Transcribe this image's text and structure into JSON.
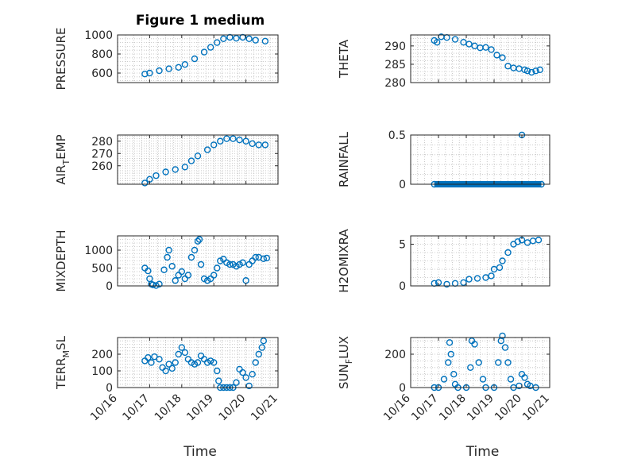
{
  "title": "Figure 1 medium",
  "x_axis": {
    "label": "Time",
    "tick_labels": [
      "10/16",
      "10/17",
      "10/18",
      "10/19",
      "10/20",
      "10/21"
    ],
    "tick_values": [
      16,
      17,
      18,
      19,
      20,
      21
    ],
    "range": [
      16,
      21
    ]
  },
  "marker_color": "#0072BD",
  "chart_data": [
    {
      "type": "scatter",
      "name": "PRESSURE",
      "ylabel": "PRESSURE",
      "ylim": [
        500,
        1000
      ],
      "yticks": [
        600,
        800,
        1000
      ],
      "grid": true,
      "points": [
        [
          16.85,
          590
        ],
        [
          17.0,
          600
        ],
        [
          17.3,
          625
        ],
        [
          17.6,
          645
        ],
        [
          17.9,
          660
        ],
        [
          18.1,
          690
        ],
        [
          18.4,
          750
        ],
        [
          18.7,
          820
        ],
        [
          18.9,
          870
        ],
        [
          19.1,
          920
        ],
        [
          19.3,
          960
        ],
        [
          19.5,
          975
        ],
        [
          19.7,
          965
        ],
        [
          19.9,
          975
        ],
        [
          20.1,
          960
        ],
        [
          20.3,
          945
        ],
        [
          20.6,
          935
        ]
      ]
    },
    {
      "type": "scatter",
      "name": "THETA",
      "ylabel": "THETA",
      "ylim": [
        280,
        293
      ],
      "yticks": [
        280,
        285,
        290
      ],
      "grid": true,
      "points": [
        [
          16.85,
          291.5
        ],
        [
          16.95,
          291
        ],
        [
          17.1,
          292.5
        ],
        [
          17.3,
          292.3
        ],
        [
          17.6,
          291.8
        ],
        [
          17.9,
          291
        ],
        [
          18.1,
          290.5
        ],
        [
          18.3,
          290
        ],
        [
          18.5,
          289.5
        ],
        [
          18.7,
          289.6
        ],
        [
          18.9,
          289
        ],
        [
          19.1,
          287.5
        ],
        [
          19.3,
          286.8
        ],
        [
          19.5,
          284.5
        ],
        [
          19.7,
          284
        ],
        [
          19.9,
          283.8
        ],
        [
          20.1,
          283.5
        ],
        [
          20.2,
          283.2
        ],
        [
          20.35,
          282.8
        ],
        [
          20.5,
          283.2
        ],
        [
          20.65,
          283.5
        ]
      ]
    },
    {
      "type": "scatter",
      "name": "AIR_TEMP",
      "ylabel": "AIR_TEMP",
      "ylim": [
        245,
        285
      ],
      "yticks": [
        260,
        270,
        280
      ],
      "grid": true,
      "points": [
        [
          16.85,
          246
        ],
        [
          17.0,
          249
        ],
        [
          17.2,
          252
        ],
        [
          17.5,
          255
        ],
        [
          17.8,
          257
        ],
        [
          18.1,
          259
        ],
        [
          18.3,
          264
        ],
        [
          18.5,
          268
        ],
        [
          18.8,
          273
        ],
        [
          19.0,
          277
        ],
        [
          19.2,
          280
        ],
        [
          19.4,
          282
        ],
        [
          19.6,
          282
        ],
        [
          19.8,
          281
        ],
        [
          20.0,
          280
        ],
        [
          20.2,
          278
        ],
        [
          20.4,
          277
        ],
        [
          20.6,
          277
        ]
      ]
    },
    {
      "type": "scatter",
      "name": "RAINFALL",
      "ylabel": "RAINFALL",
      "ylim": [
        0,
        0.5
      ],
      "yticks": [
        0,
        0.5
      ],
      "grid": true,
      "line_y": 0,
      "line_x": [
        16.85,
        20.7
      ],
      "points": [
        [
          16.85,
          0
        ],
        [
          20.0,
          0.5
        ],
        [
          20.7,
          0
        ]
      ]
    },
    {
      "type": "scatter",
      "name": "MIXDEPTH",
      "ylabel": "MIXDEPTH",
      "ylim": [
        0,
        1400
      ],
      "yticks": [
        0,
        500,
        1000
      ],
      "grid": true,
      "points": [
        [
          16.85,
          500
        ],
        [
          16.95,
          420
        ],
        [
          17.0,
          200
        ],
        [
          17.05,
          50
        ],
        [
          17.1,
          30
        ],
        [
          17.2,
          10
        ],
        [
          17.3,
          50
        ],
        [
          17.45,
          450
        ],
        [
          17.55,
          800
        ],
        [
          17.6,
          1000
        ],
        [
          17.7,
          550
        ],
        [
          17.8,
          150
        ],
        [
          17.9,
          300
        ],
        [
          18.0,
          400
        ],
        [
          18.1,
          200
        ],
        [
          18.2,
          300
        ],
        [
          18.3,
          800
        ],
        [
          18.4,
          1000
        ],
        [
          18.5,
          1250
        ],
        [
          18.55,
          1300
        ],
        [
          18.6,
          600
        ],
        [
          18.7,
          200
        ],
        [
          18.8,
          150
        ],
        [
          18.9,
          200
        ],
        [
          19.0,
          300
        ],
        [
          19.1,
          500
        ],
        [
          19.2,
          700
        ],
        [
          19.3,
          750
        ],
        [
          19.4,
          650
        ],
        [
          19.5,
          600
        ],
        [
          19.6,
          600
        ],
        [
          19.7,
          550
        ],
        [
          19.8,
          600
        ],
        [
          19.9,
          650
        ],
        [
          20.0,
          150
        ],
        [
          20.1,
          600
        ],
        [
          20.2,
          700
        ],
        [
          20.3,
          800
        ],
        [
          20.4,
          800
        ],
        [
          20.55,
          760
        ],
        [
          20.65,
          780
        ]
      ]
    },
    {
      "type": "scatter",
      "name": "H2OMIXRA",
      "ylabel": "H2OMIXRA",
      "ylim": [
        0,
        6
      ],
      "yticks": [
        0,
        5
      ],
      "grid": true,
      "points": [
        [
          16.85,
          0.3
        ],
        [
          17.0,
          0.4
        ],
        [
          17.3,
          0.2
        ],
        [
          17.6,
          0.3
        ],
        [
          17.9,
          0.4
        ],
        [
          18.1,
          0.8
        ],
        [
          18.4,
          0.9
        ],
        [
          18.7,
          1.0
        ],
        [
          18.9,
          1.2
        ],
        [
          19.0,
          2.0
        ],
        [
          19.2,
          2.2
        ],
        [
          19.3,
          3.0
        ],
        [
          19.5,
          4.0
        ],
        [
          19.7,
          5.0
        ],
        [
          19.85,
          5.3
        ],
        [
          20.0,
          5.5
        ],
        [
          20.2,
          5.2
        ],
        [
          20.4,
          5.4
        ],
        [
          20.6,
          5.5
        ]
      ]
    },
    {
      "type": "scatter",
      "name": "TERR_MSL",
      "ylabel": "TERR_MSL",
      "ylim": [
        0,
        300
      ],
      "yticks": [
        0,
        100,
        200
      ],
      "grid": true,
      "points": [
        [
          16.85,
          160
        ],
        [
          16.95,
          180
        ],
        [
          17.05,
          150
        ],
        [
          17.15,
          185
        ],
        [
          17.3,
          170
        ],
        [
          17.4,
          120
        ],
        [
          17.5,
          100
        ],
        [
          17.6,
          140
        ],
        [
          17.7,
          115
        ],
        [
          17.8,
          150
        ],
        [
          17.9,
          200
        ],
        [
          18.0,
          240
        ],
        [
          18.1,
          210
        ],
        [
          18.2,
          170
        ],
        [
          18.3,
          150
        ],
        [
          18.4,
          140
        ],
        [
          18.5,
          150
        ],
        [
          18.6,
          190
        ],
        [
          18.7,
          170
        ],
        [
          18.8,
          150
        ],
        [
          18.9,
          160
        ],
        [
          19.0,
          150
        ],
        [
          19.1,
          100
        ],
        [
          19.15,
          40
        ],
        [
          19.2,
          0
        ],
        [
          19.3,
          0
        ],
        [
          19.4,
          0
        ],
        [
          19.5,
          0
        ],
        [
          19.6,
          0
        ],
        [
          19.7,
          30
        ],
        [
          19.8,
          110
        ],
        [
          19.9,
          90
        ],
        [
          20.0,
          60
        ],
        [
          20.1,
          10
        ],
        [
          20.2,
          80
        ],
        [
          20.3,
          150
        ],
        [
          20.4,
          200
        ],
        [
          20.5,
          240
        ],
        [
          20.55,
          280
        ]
      ]
    },
    {
      "type": "scatter",
      "name": "SUN_FLUX",
      "ylabel": "SUN_FLUX",
      "ylim": [
        0,
        300
      ],
      "yticks": [
        0,
        200
      ],
      "grid": true,
      "points": [
        [
          16.85,
          0
        ],
        [
          17.0,
          0
        ],
        [
          17.2,
          50
        ],
        [
          17.35,
          150
        ],
        [
          17.4,
          270
        ],
        [
          17.45,
          200
        ],
        [
          17.55,
          80
        ],
        [
          17.6,
          20
        ],
        [
          17.7,
          0
        ],
        [
          18.0,
          0
        ],
        [
          18.15,
          120
        ],
        [
          18.2,
          280
        ],
        [
          18.3,
          260
        ],
        [
          18.45,
          150
        ],
        [
          18.6,
          50
        ],
        [
          18.7,
          0
        ],
        [
          19.0,
          0
        ],
        [
          19.15,
          150
        ],
        [
          19.25,
          280
        ],
        [
          19.3,
          310
        ],
        [
          19.4,
          240
        ],
        [
          19.5,
          150
        ],
        [
          19.6,
          50
        ],
        [
          19.7,
          0
        ],
        [
          19.9,
          10
        ],
        [
          20.0,
          80
        ],
        [
          20.1,
          60
        ],
        [
          20.2,
          20
        ],
        [
          20.3,
          10
        ],
        [
          20.5,
          0
        ]
      ]
    }
  ]
}
